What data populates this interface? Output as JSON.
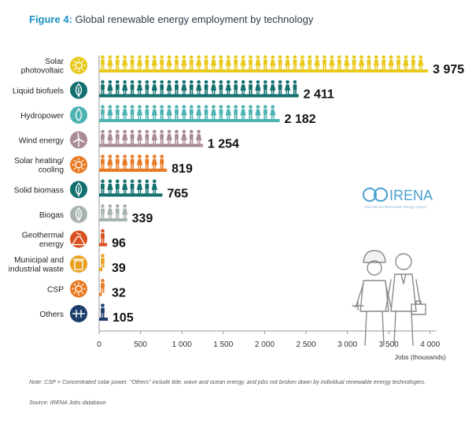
{
  "figure": {
    "label": "Figure 4:",
    "title": "Global renewable energy employment by technology",
    "note": "Note: CSP = Concentrated solar power. \"Others\" include tide, wave and ocean energy, and jobs not broken down by individual renewable energy technologies.",
    "source": "Source: IRENA Jobs database.",
    "logo_text": "IRENA",
    "logo_subtext": "International Renewable Energy Agency"
  },
  "chart_data": {
    "type": "bar",
    "orientation": "horizontal",
    "xlabel": "Jobs (thousands)",
    "xlim": [
      0,
      4000
    ],
    "xticks": [
      0,
      500,
      1000,
      1500,
      2000,
      2500,
      3000,
      3500,
      4000
    ],
    "xtick_labels": [
      "0",
      "500",
      "1 000",
      "1 500",
      "2 000",
      "2 500",
      "3 000",
      "3 500",
      "4 000"
    ],
    "grid": false,
    "categories": [
      {
        "label": [
          "Solar",
          "photovoltaic"
        ],
        "value": 3975,
        "value_label": "3 975",
        "color": "#e8c91c",
        "icon": "sun-icon"
      },
      {
        "label": [
          "Liquid biofuels"
        ],
        "value": 2411,
        "value_label": "2 411",
        "color": "#12706f",
        "icon": "leaf-icon"
      },
      {
        "label": [
          "Hydropower"
        ],
        "value": 2182,
        "value_label": "2 182",
        "color": "#4fb2b3",
        "icon": "water-drop-icon"
      },
      {
        "label": [
          "Wind energy"
        ],
        "value": 1254,
        "value_label": "1 254",
        "color": "#a98b93",
        "icon": "wind-turbine-icon"
      },
      {
        "label": [
          "Solar heating/",
          "cooling"
        ],
        "value": 819,
        "value_label": "819",
        "color": "#e87a24",
        "icon": "sun-icon"
      },
      {
        "label": [
          "Solid biomass"
        ],
        "value": 765,
        "value_label": "765",
        "color": "#12706f",
        "icon": "leaf-icon"
      },
      {
        "label": [
          "Biogas"
        ],
        "value": 339,
        "value_label": "339",
        "color": "#a7b3b1",
        "icon": "leaf-icon"
      },
      {
        "label": [
          "Geothermal",
          "energy"
        ],
        "value": 96,
        "value_label": "96",
        "color": "#d8501f",
        "icon": "volcano-icon"
      },
      {
        "label": [
          "Municipal and",
          "industrial waste"
        ],
        "value": 39,
        "value_label": "39",
        "color": "#e8a020",
        "icon": "trash-can-icon"
      },
      {
        "label": [
          "CSP"
        ],
        "value": 32,
        "value_label": "32",
        "color": "#e87a24",
        "icon": "sun-icon"
      },
      {
        "label": [
          "Others"
        ],
        "value": 105,
        "value_label": "105",
        "color": "#1d3d6b",
        "icon": "plug-icon"
      }
    ]
  }
}
